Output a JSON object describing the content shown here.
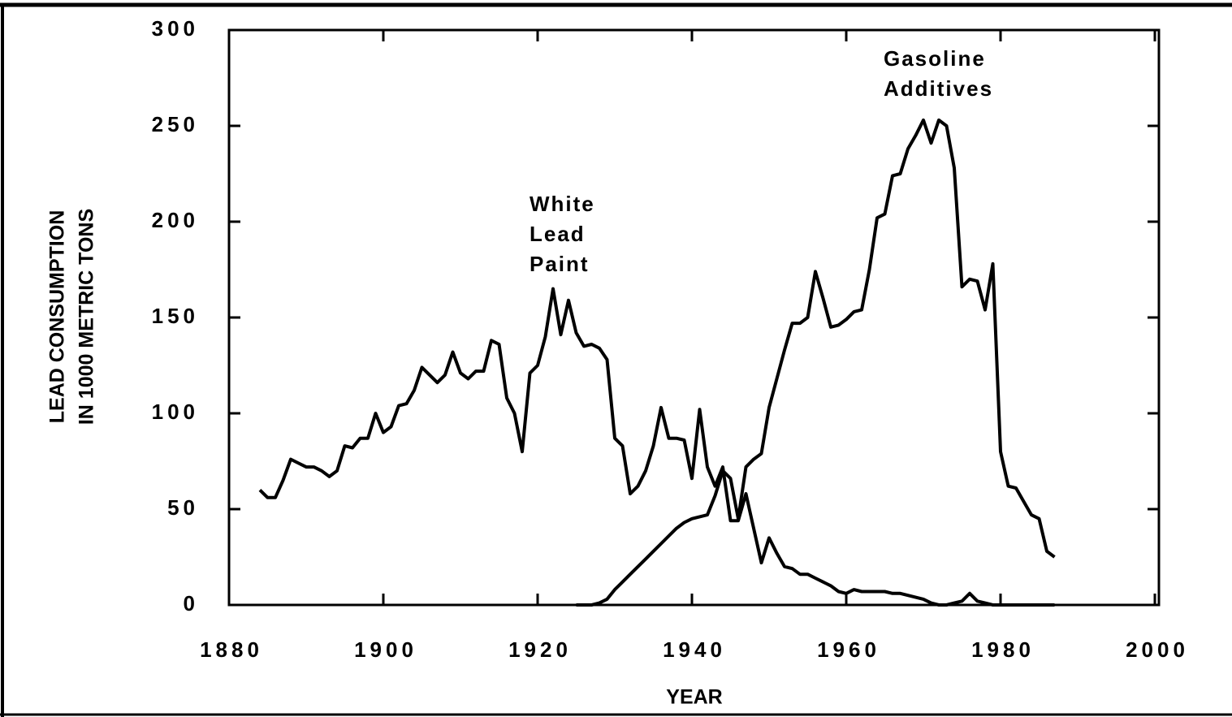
{
  "chart_data": {
    "type": "line",
    "xlabel": "YEAR",
    "ylabel": [
      "LEAD CONSUMPTION",
      "IN 1000 METRIC TONS"
    ],
    "annotations": [
      [
        "White",
        "Lead",
        "Paint"
      ],
      [
        "Gasoline",
        "Additives"
      ]
    ],
    "x": [
      1884,
      1885,
      1886,
      1887,
      1888,
      1889,
      1890,
      1891,
      1892,
      1893,
      1894,
      1895,
      1896,
      1897,
      1898,
      1899,
      1900,
      1901,
      1902,
      1903,
      1904,
      1905,
      1906,
      1907,
      1908,
      1909,
      1910,
      1911,
      1912,
      1913,
      1914,
      1915,
      1916,
      1917,
      1918,
      1919,
      1920,
      1921,
      1922,
      1923,
      1924,
      1925,
      1926,
      1927,
      1928,
      1929,
      1930,
      1931,
      1932,
      1933,
      1934,
      1935,
      1936,
      1937,
      1938,
      1939,
      1940,
      1941,
      1942,
      1943,
      1944,
      1945,
      1946,
      1947,
      1948,
      1949,
      1950,
      1951,
      1952,
      1953,
      1954,
      1955,
      1956,
      1957,
      1958,
      1959,
      1960,
      1961,
      1962,
      1963,
      1964,
      1965,
      1966,
      1967,
      1968,
      1969,
      1970,
      1971,
      1972,
      1973,
      1974,
      1975,
      1976,
      1977,
      1978,
      1979,
      1980,
      1981,
      1982,
      1983,
      1984,
      1985,
      1986,
      1987
    ],
    "series": [
      {
        "color": "#000000",
        "values": [
          60,
          56,
          56,
          65,
          76,
          74,
          72,
          72,
          70,
          67,
          70,
          83,
          82,
          87,
          87,
          100,
          90,
          93,
          104,
          105,
          112,
          124,
          120,
          116,
          120,
          132,
          121,
          118,
          122,
          122,
          138,
          136,
          108,
          100,
          80,
          121,
          125,
          140,
          165,
          141,
          159,
          142,
          135,
          136,
          134,
          128,
          87,
          83,
          58,
          62,
          70,
          83,
          103,
          87,
          87,
          86,
          66,
          102,
          72,
          62,
          72,
          44,
          44,
          58,
          40,
          22,
          35,
          27,
          20,
          19,
          16,
          16,
          14,
          12,
          10,
          7,
          6,
          8,
          7,
          7,
          7,
          7,
          6,
          6,
          5,
          4,
          3,
          1,
          0,
          0,
          1,
          2,
          6,
          2,
          1,
          0,
          0,
          0,
          0,
          0,
          0,
          0,
          0,
          0
        ]
      },
      {
        "color": "#000000",
        "values": [
          null,
          null,
          null,
          null,
          null,
          null,
          null,
          null,
          null,
          null,
          null,
          null,
          null,
          null,
          null,
          null,
          null,
          null,
          null,
          null,
          null,
          null,
          null,
          null,
          null,
          null,
          null,
          null,
          null,
          null,
          null,
          null,
          null,
          null,
          null,
          null,
          null,
          null,
          null,
          null,
          null,
          0,
          0,
          0,
          1,
          3,
          8,
          12,
          16,
          20,
          24,
          28,
          32,
          36,
          40,
          43,
          45,
          46,
          47,
          57,
          70,
          66,
          45,
          72,
          76,
          79,
          103,
          118,
          133,
          147,
          147,
          150,
          174,
          160,
          145,
          146,
          149,
          153,
          154,
          175,
          202,
          204,
          224,
          225,
          238,
          245,
          253,
          241,
          253,
          250,
          228,
          166,
          170,
          169,
          154,
          178,
          80,
          62,
          61,
          54,
          47,
          45,
          28,
          25
        ]
      }
    ],
    "xlim": [
      1880,
      2000
    ],
    "xticks": [
      1880,
      1900,
      1920,
      1940,
      1960,
      1980,
      2000
    ],
    "ylim": [
      0,
      300
    ],
    "yticks": [
      0,
      50,
      100,
      150,
      200,
      250,
      300
    ]
  }
}
